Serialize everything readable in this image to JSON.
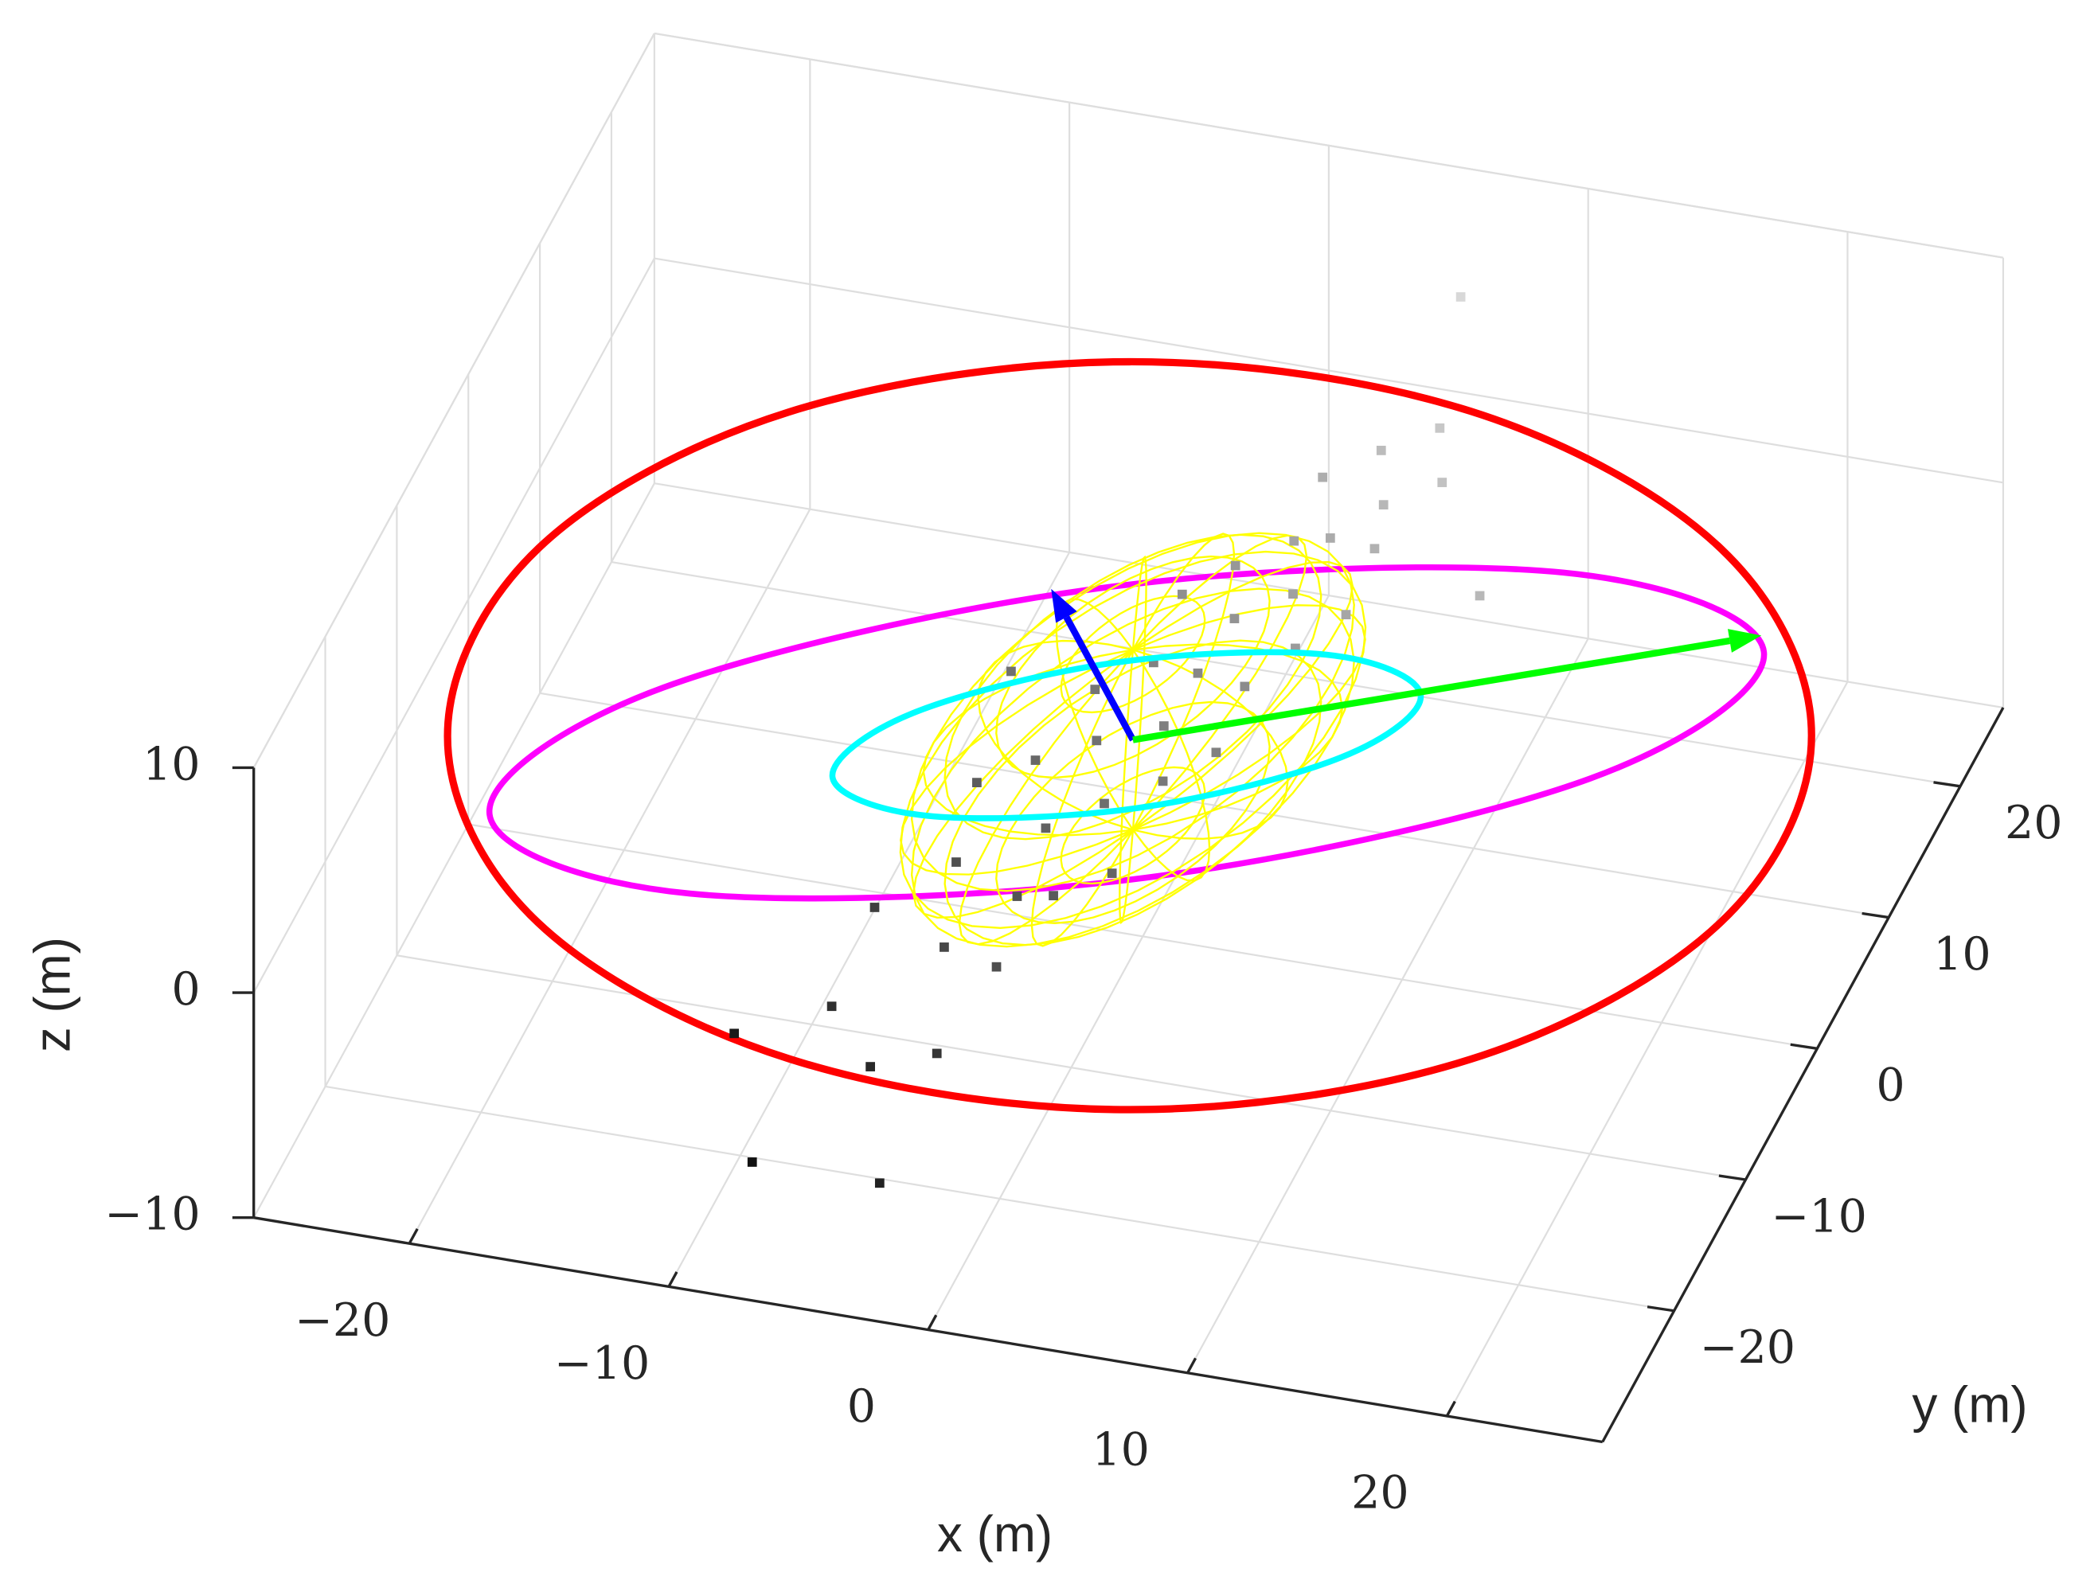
{
  "chart_data": {
    "type": "scatter3d",
    "xlabel": "x (m)",
    "ylabel": "y (m)",
    "zlabel": "z (m)",
    "xlim": [
      -26,
      26
    ],
    "ylim": [
      -30,
      26
    ],
    "zlim": [
      -10,
      10
    ],
    "xticks": [
      {
        "value": -20,
        "label": "−20"
      },
      {
        "value": -10,
        "label": "−10"
      },
      0,
      10,
      20
    ],
    "yticks": [
      {
        "value": -20,
        "label": "−20"
      },
      {
        "value": -10,
        "label": "−10"
      },
      0,
      10,
      20
    ],
    "zticks": [
      {
        "value": -10,
        "label": "−10"
      },
      0,
      10
    ],
    "grid": true,
    "points": {
      "colors": [
        "#111111",
        "#d8d8d8"
      ],
      "x": [
        -7.0,
        -4.6,
        -2.2,
        -7.0,
        -3.6,
        -1.2,
        -4.6,
        -1.7,
        -5.1,
        -0.3,
        -1.7,
        -3.2,
        1.6,
        0.2,
        -1.2,
        2.1,
        -2.2,
        1.2,
        -0.3,
        3.6,
        1.6,
        -0.3,
        3.6,
        2.1,
        5.0,
        1.2,
        4.0,
        3.1,
        6.4,
        4.5,
        6.4,
        3.1,
        6.0,
        5.0,
        7.9,
        6.9,
        -7.5,
        -10.4,
        -2.2,
        5.5,
        11.2,
        -5.6
      ],
      "y": [
        -18.1,
        -21.4,
        -20.8,
        -12.1,
        -14.7,
        -16.1,
        -9.4,
        -11.4,
        -4.7,
        -11.4,
        -7.4,
        -3.4,
        -10.1,
        -6.1,
        -2.1,
        -4.8,
        1.3,
        -1.4,
        2.6,
        -2.8,
        1.9,
        6.6,
        1.2,
        5.2,
        3.2,
        8.6,
        6.5,
        9.9,
        5.2,
        9.9,
        9.2,
        13.9,
        11.9,
        15.2,
        13.2,
        16.5,
        -27.4,
        -19.4,
        -28.8,
        24.5,
        6.5,
        1.9
      ],
      "z": [
        -3.9,
        -4.2,
        -3.5,
        -3.0,
        -2.6,
        -2.2,
        -2.1,
        -1.9,
        -1.4,
        -1.6,
        -1.2,
        -0.8,
        -1.0,
        -0.5,
        -0.3,
        0.1,
        -0.2,
        0.4,
        0.6,
        0.5,
        0.9,
        1.3,
        1.1,
        1.5,
        1.9,
        1.7,
        2.2,
        2.4,
        2.5,
        2.8,
        3.1,
        2.9,
        3.4,
        3.7,
        4.0,
        4.3,
        -5.5,
        -5.0,
        -4.6,
        5.2,
        3.5,
        -0.4
      ]
    },
    "curves": [
      {
        "color": "#ff0000",
        "x": [
          24.1,
          24.5,
          18.3,
          7.2,
          -5.8,
          -17.3,
          -24.1,
          -24.5,
          -18.3,
          -7.2,
          5.8,
          17.3
        ],
        "y": [
          6.1,
          -8.0,
          -20.5,
          -28.0,
          -28.4,
          -21.8,
          -9.8,
          4.4,
          16.8,
          24.3,
          24.8,
          18.1
        ],
        "z": [
          0,
          0,
          0,
          0,
          0,
          0,
          0,
          0,
          0,
          0,
          0,
          0
        ]
      },
      {
        "color": "#ff00ff",
        "x": [
          20.8,
          17.1,
          3.3,
          -12.5,
          -21.1,
          -17.4,
          -3.6,
          12.2
        ],
        "y": [
          11.4,
          0.5,
          -11.6,
          -18.0,
          -14.8,
          -3.9,
          8.3,
          14.6
        ],
        "z": [
          0,
          0,
          0,
          0,
          0,
          0,
          0,
          0
        ]
      },
      {
        "color": "#00ffff",
        "x": [
          9.5,
          7.9,
          1.7,
          -5.6,
          -9.7,
          -8.1,
          -1.9,
          5.4
        ],
        "y": [
          4.4,
          -0.9,
          -6.8,
          -9.8,
          -8.2,
          -2.8,
          3.1,
          6.1
        ],
        "z": [
          0,
          0,
          0,
          0,
          0,
          0,
          0,
          0
        ]
      }
    ],
    "ellipsoid": {
      "color": "#ffff00",
      "center": [
        0.2,
        -2.1,
        0
      ],
      "axes": [
        [
          4.8,
          13.3,
          0
        ],
        [
          4.8,
          -6.7,
          0
        ],
        [
          0,
          0,
          4
        ]
      ]
    },
    "arrows": [
      {
        "color": "#0000ff",
        "from": [
          0.2,
          -2.1,
          0
        ],
        "to": [
          -5.6,
          7.5,
          0
        ]
      },
      {
        "color": "#00ff00",
        "from": [
          0.2,
          -2.1,
          0
        ],
        "to": [
          20.4,
          12.5,
          0
        ]
      }
    ]
  }
}
